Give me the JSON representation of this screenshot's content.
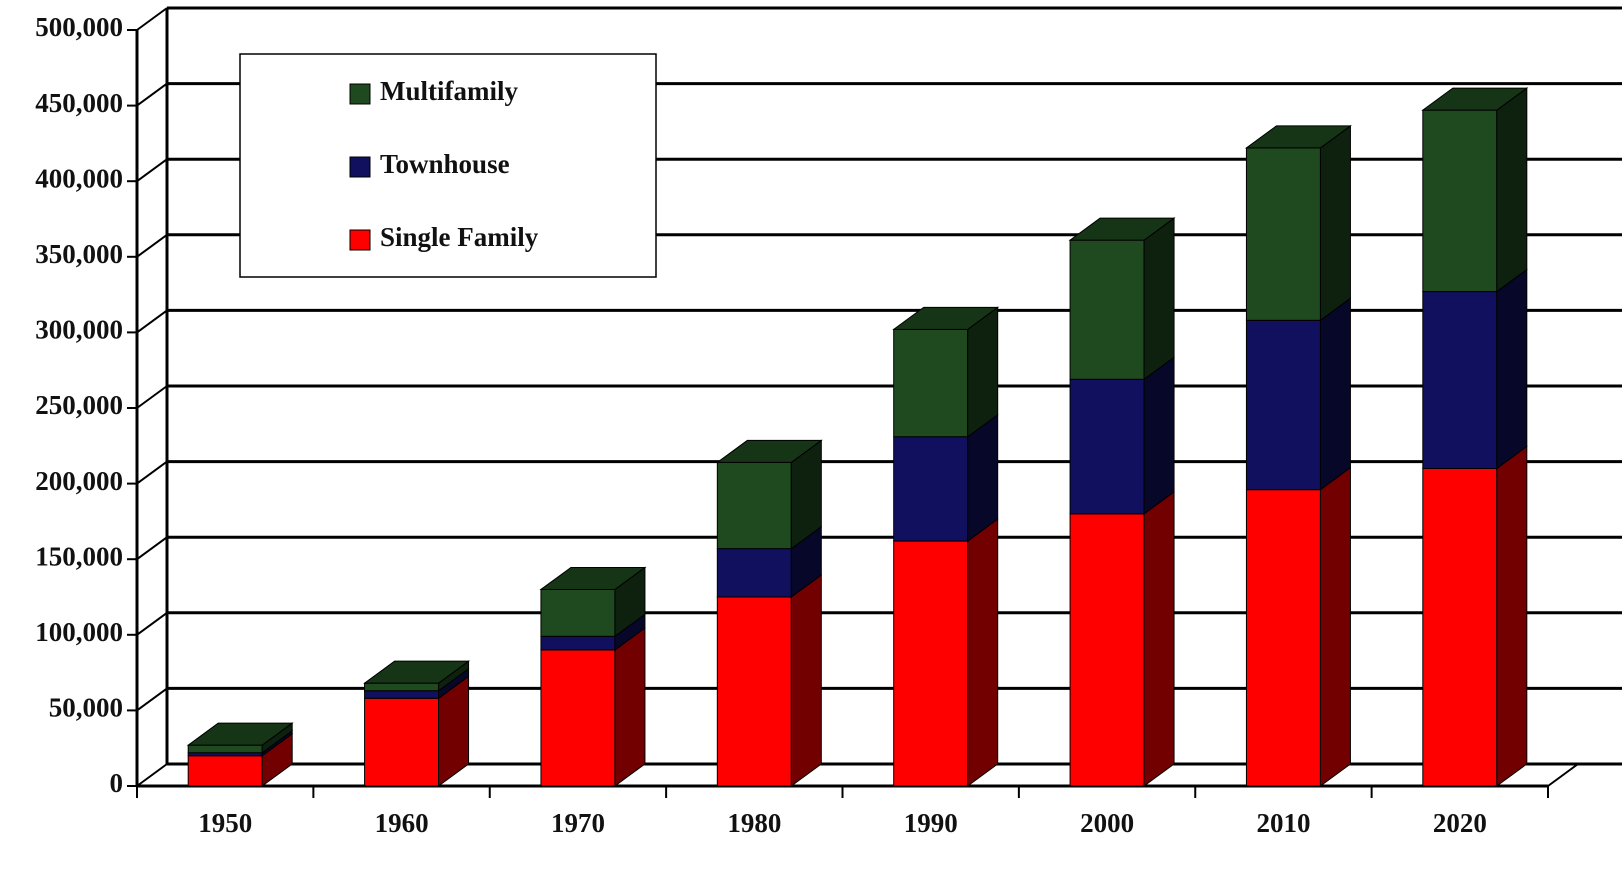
{
  "chart_data": {
    "type": "bar3d_stacked",
    "categories": [
      "1950",
      "1960",
      "1970",
      "1980",
      "1990",
      "2000",
      "2010",
      "2020"
    ],
    "series": [
      {
        "name": "Single Family",
        "color": "#ff0000",
        "values": [
          20000,
          58000,
          90000,
          125000,
          162000,
          180000,
          196000,
          210000
        ]
      },
      {
        "name": "Townhouse",
        "color": "#10105e",
        "values": [
          2000,
          5000,
          9000,
          32000,
          69000,
          89000,
          112000,
          117000
        ]
      },
      {
        "name": "Multifamily",
        "color": "#1f4a1f",
        "values": [
          5000,
          5000,
          31000,
          57000,
          71000,
          92000,
          114000,
          120000
        ]
      }
    ],
    "ylim": [
      0,
      500000
    ],
    "yticks": [
      0,
      {
        "value": 50000,
        "label": "50,000"
      },
      {
        "value": 100000,
        "label": "100,000"
      },
      {
        "value": 150000,
        "label": "150,000"
      },
      {
        "value": 200000,
        "label": "200,000"
      },
      {
        "value": 250000,
        "label": "250,000"
      },
      {
        "value": 300000,
        "label": "300,000"
      },
      {
        "value": 350000,
        "label": "350,000"
      },
      {
        "value": 400000,
        "label": "400,000"
      },
      {
        "value": 450000,
        "label": "450,000"
      },
      {
        "value": 500000,
        "label": "500,000"
      }
    ],
    "grid": true,
    "legend": "upper left"
  }
}
